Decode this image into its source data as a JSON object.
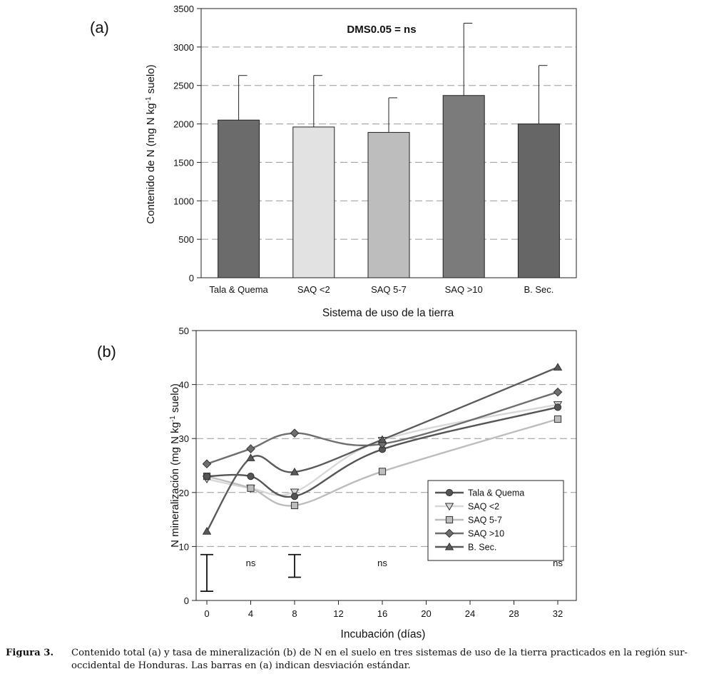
{
  "chart_data": [
    {
      "type": "bar",
      "panel_label": "(a)",
      "annotation": "DMS0.05 = ns",
      "categories": [
        "Tala & Quema",
        "SAQ <2",
        "SAQ 5-7",
        "SAQ >10",
        "B. Sec."
      ],
      "values": [
        2050,
        1960,
        1890,
        2370,
        2000
      ],
      "errors": [
        580,
        670,
        450,
        940,
        760
      ],
      "colors": [
        "#6b6b6b",
        "#e2e2e2",
        "#bdbdbd",
        "#7b7b7b",
        "#666666"
      ],
      "xlabel": "Sistema de uso de la tierra",
      "ylabel": "Contenido de N (mg N kg-1 suelo)",
      "ylim": [
        0,
        3500
      ],
      "yticks": [
        0,
        500,
        1000,
        1500,
        2000,
        2500,
        3000,
        3500
      ],
      "grid": true
    },
    {
      "type": "line",
      "panel_label": "(b)",
      "x": [
        0,
        4,
        8,
        16,
        32
      ],
      "series": [
        {
          "name": "Tala & Quema",
          "values": [
            23.0,
            23.0,
            19.3,
            28.0,
            35.8
          ],
          "color": "#555555",
          "marker": "circle"
        },
        {
          "name": "SAQ <2",
          "values": [
            22.5,
            20.8,
            20.1,
            29.7,
            36.3
          ],
          "color": "#d8d8d8",
          "marker": "triangle-down"
        },
        {
          "name": "SAQ 5-7",
          "values": [
            23.0,
            20.8,
            17.6,
            23.9,
            33.6
          ],
          "color": "#bdbdbd",
          "marker": "square"
        },
        {
          "name": "SAQ >10",
          "values": [
            25.3,
            28.1,
            31.0,
            29.0,
            38.6
          ],
          "color": "#6e6e6e",
          "marker": "diamond"
        },
        {
          "name": "B. Sec.",
          "values": [
            12.8,
            26.4,
            23.8,
            29.8,
            43.2
          ],
          "color": "#5a5a5a",
          "marker": "triangle-up"
        }
      ],
      "lsd_bars": [
        {
          "x": 0,
          "low": 1.7,
          "high": 8.5
        },
        {
          "x": 8,
          "low": 4.3,
          "high": 8.5
        }
      ],
      "ns_labels": [
        {
          "x": 4,
          "y": 7,
          "text": "ns"
        },
        {
          "x": 16,
          "y": 7,
          "text": "ns"
        },
        {
          "x": 32,
          "y": 7,
          "text": "ns"
        }
      ],
      "xlabel": "Incubación (días)",
      "ylabel": "N mineralización (mg N kg-1 suelo)",
      "xlim": [
        0,
        32
      ],
      "xticks": [
        0,
        4,
        8,
        12,
        16,
        20,
        24,
        28,
        32
      ],
      "ylim": [
        0,
        50
      ],
      "yticks": [
        0,
        10,
        20,
        30,
        40,
        50
      ],
      "grid": true,
      "legend_position": "lower-right"
    }
  ],
  "caption": {
    "label": "Figura 3.",
    "text": "Contenido total (a) y tasa de mineralización (b) de N en el suelo en tres sistemas  de uso de la tierra practicados en la región sur-occidental de Honduras. Las barras en (a) indican desviación estándar."
  }
}
